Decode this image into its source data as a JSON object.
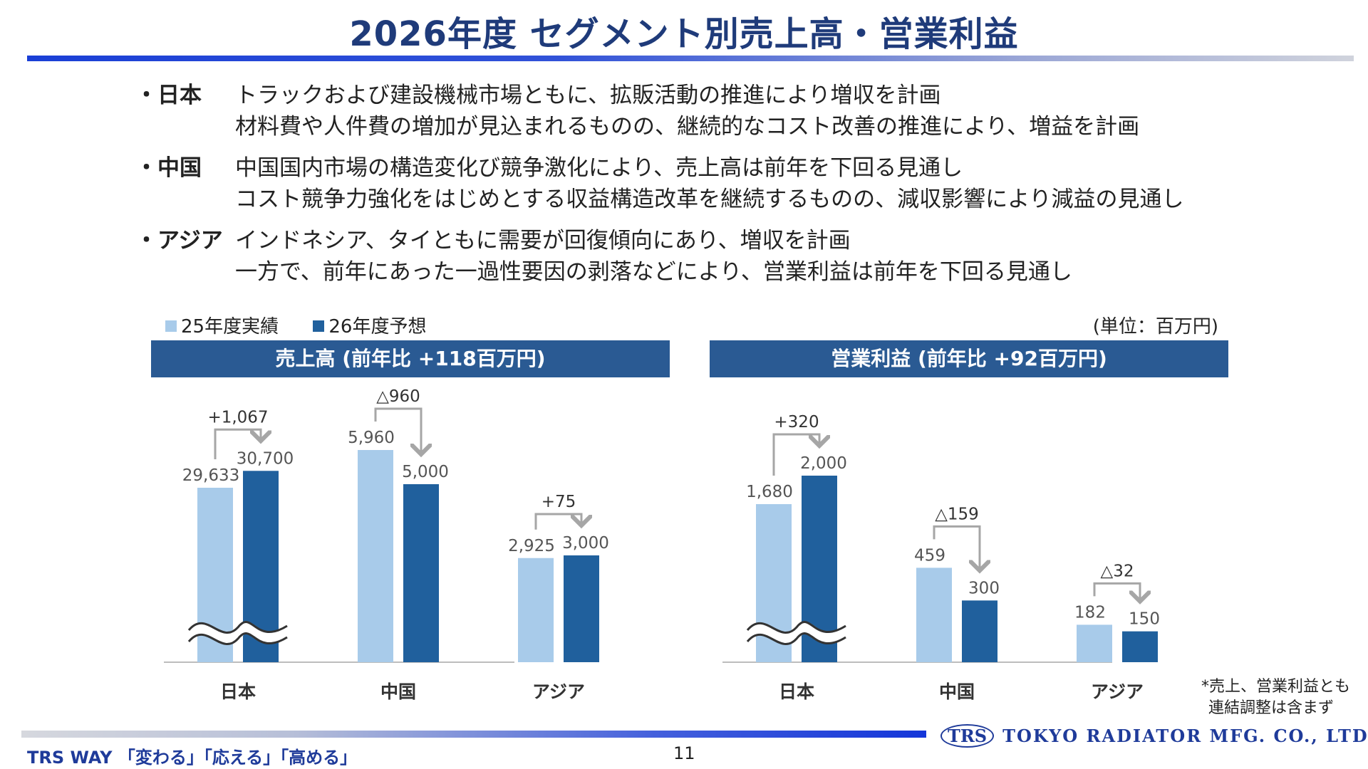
{
  "title": "2026年度 セグメント別売上高・営業利益",
  "segments": [
    {
      "label": "・日本",
      "lines": [
        "トラックおよび建設機械市場ともに、拡販活動の推進により増収を計画",
        "材料費や人件費の増加が見込まれるものの、継続的なコスト改善の推進により、増益を計画"
      ]
    },
    {
      "label": "・中国",
      "lines": [
        "中国国内市場の構造変化び競争激化により、売上高は前年を下回る見通し",
        "コスト競争力強化をはじめとする収益構造改革を継続するものの、減収影響により減益の見通し"
      ]
    },
    {
      "label": "・アジア",
      "lines": [
        "インドネシア、タイともに需要が回復傾向にあり、増収を計画",
        "一方で、前年にあった一過性要因の剥落などにより、営業利益は前年を下回る見通し"
      ]
    }
  ],
  "legend": {
    "prev": "25年度実績",
    "next": "26年度予想"
  },
  "unit": "(単位：百万円)",
  "colors": {
    "prev": "#a8cbea",
    "next": "#20609d",
    "header": "#2a5a93",
    "arrow": "#a6a6a6"
  },
  "chart_data": [
    {
      "type": "bar",
      "title": "売上高 (前年比 +118百万円)",
      "categories": [
        "日本",
        "中国",
        "アジア"
      ],
      "series": [
        {
          "name": "25年度実績",
          "values": [
            29633,
            5960,
            2925
          ],
          "labels": [
            "29,633",
            "5,960",
            "2,925"
          ]
        },
        {
          "name": "26年度予想",
          "values": [
            30700,
            5000,
            3000
          ],
          "labels": [
            "30,700",
            "5,000",
            "3,000"
          ]
        }
      ],
      "changes": [
        "+1,067",
        "△960",
        "+75"
      ],
      "axis_break": "日本"
    },
    {
      "type": "bar",
      "title": "営業利益 (前年比 +92百万円)",
      "categories": [
        "日本",
        "中国",
        "アジア"
      ],
      "series": [
        {
          "name": "25年度実績",
          "values": [
            1680,
            459,
            182
          ],
          "labels": [
            "1,680",
            "459",
            "182"
          ]
        },
        {
          "name": "26年度予想",
          "values": [
            2000,
            300,
            150
          ],
          "labels": [
            "2,000",
            "300",
            "150"
          ]
        }
      ],
      "changes": [
        "+320",
        "△159",
        "△32"
      ],
      "axis_break": "日本"
    }
  ],
  "note": [
    "*売上、営業利益とも",
    "連結調整は含まず"
  ],
  "footer": {
    "slogan": "TRS WAY 「変わる」「応える」「高める」",
    "page": "11",
    "logo_mark": "TRS",
    "company": "TOKYO RADIATOR MFG. CO., LTD."
  }
}
